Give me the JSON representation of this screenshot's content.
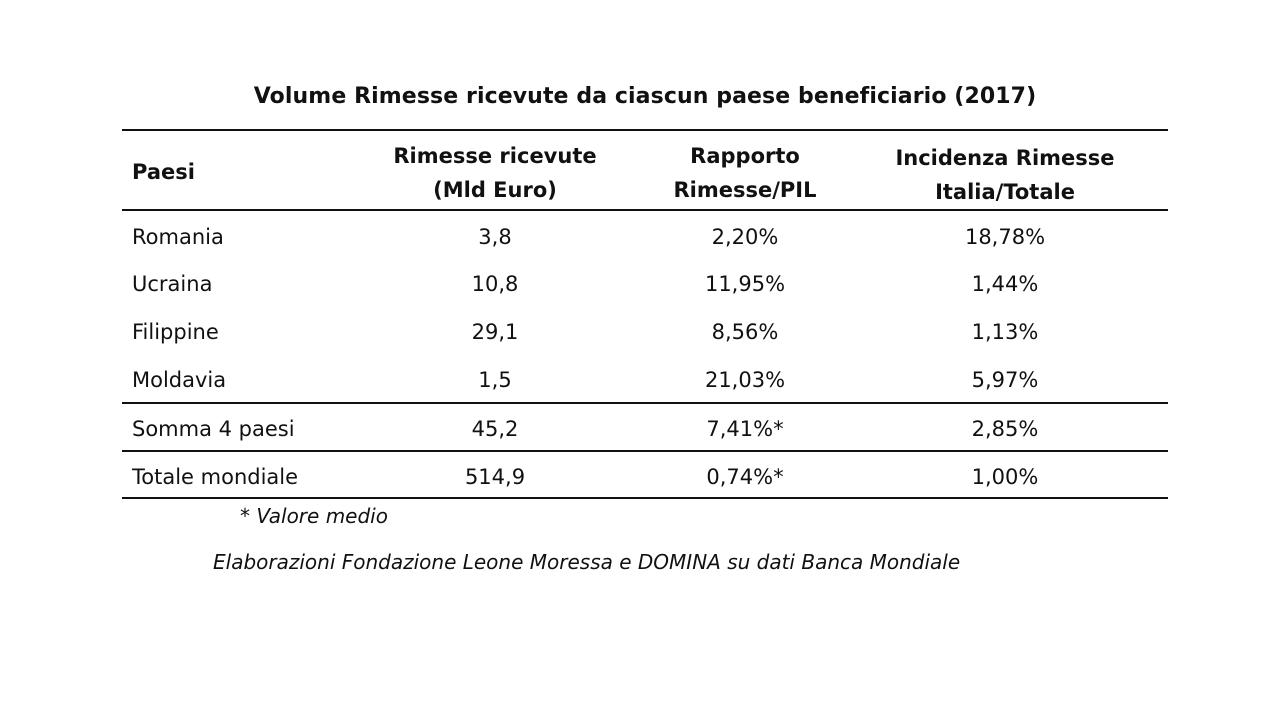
{
  "title": "Volume Rimesse ricevute da ciascun paese beneficiario (2017)",
  "headers": [
    [
      "Paesi"
    ],
    [
      "Rimesse ricevute",
      "(Mld Euro)"
    ],
    [
      "Rapporto",
      "Rimesse/PIL"
    ],
    [
      "Incidenza Rimesse",
      "Italia/Totale"
    ]
  ],
  "rows": [
    [
      "Romania",
      "3,8",
      "2,20%",
      "18,78%"
    ],
    [
      "Ucraina",
      "10,8",
      "11,95%",
      "1,44%"
    ],
    [
      "Filippine",
      "29,1",
      "8,56%",
      "1,13%"
    ],
    [
      "Moldavia",
      "1,5",
      "21,03%",
      "5,97%"
    ],
    [
      "Somma 4 paesi",
      "45,2",
      "7,41%*",
      "2,85%"
    ],
    [
      "Totale mondiale",
      "514,9",
      "0,74%*",
      "1,00%"
    ]
  ],
  "footnote": "* Valore medio",
  "source": "Elaborazioni Fondazione Leone Moressa e DOMINA su dati Banca Mondiale"
}
